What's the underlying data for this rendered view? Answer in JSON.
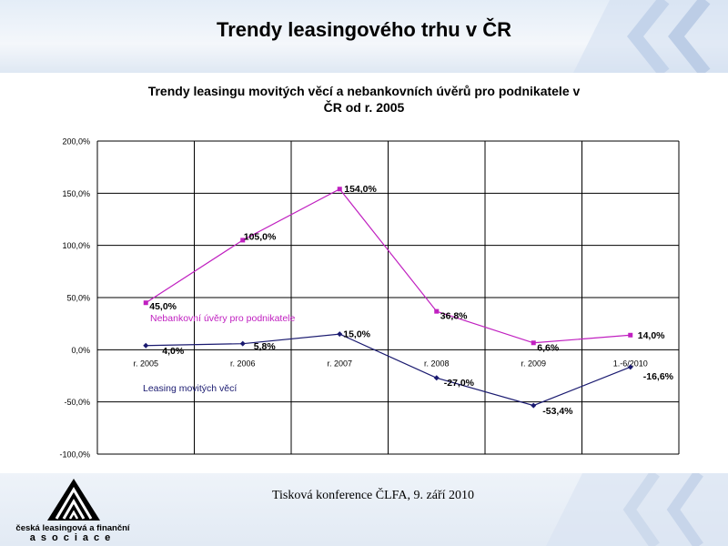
{
  "slide": {
    "title": "Trendy leasingového trhu v  ČR",
    "footer_note": "Tisková konference ČLFA, 9. září 2010",
    "org_name_line1": "česká leasingová a finanční",
    "org_name_line2": "asociace"
  },
  "colors": {
    "series_magenta": "#c020c0",
    "series_navy": "#1a1a70",
    "grid": "#000000"
  },
  "chart_data": {
    "type": "line",
    "title_line1": "Trendy leasingu movitých věcí a nebankovních úvěrů pro podnikatele v",
    "title_line2": "ČR od r. 2005",
    "categories": [
      "r. 2005",
      "r. 2006",
      "r. 2007",
      "r. 2008",
      "r. 2009",
      "1.-6/2010"
    ],
    "ylim": [
      -100,
      200
    ],
    "yticks": [
      -100,
      -50,
      0,
      50,
      100,
      150,
      200
    ],
    "ytick_labels": [
      "-100,0%",
      "-50,0%",
      "0,0%",
      "50,0%",
      "100,0%",
      "150,0%",
      "200,0%"
    ],
    "grid": true,
    "series": [
      {
        "name": "Nebankovní úvěry pro podnikatele",
        "color": "#c020c0",
        "marker": "square",
        "values": [
          45.0,
          105.0,
          154.0,
          36.8,
          6.6,
          14.0
        ],
        "labels": [
          "45,0%",
          "105,0%",
          "154,0%",
          "36,8%",
          "6,6%",
          "14,0%"
        ]
      },
      {
        "name": "Leasing movitých věcí",
        "color": "#1a1a70",
        "marker": "diamond",
        "values": [
          4.0,
          5.8,
          15.0,
          -27.0,
          -53.4,
          -16.6
        ],
        "labels": [
          "4,0%",
          "5,8%",
          "15,0%",
          "-27,0%",
          "-53,4%",
          "-16,6%"
        ]
      }
    ]
  }
}
